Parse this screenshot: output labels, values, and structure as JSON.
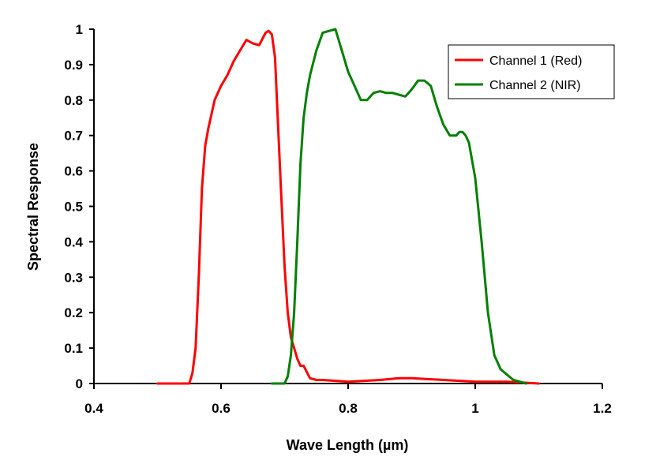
{
  "chart_data": {
    "type": "line",
    "xlabel": "Wave Length (µm)",
    "ylabel": "Spectral Response",
    "xlim": [
      0.4,
      1.2
    ],
    "ylim": [
      0,
      1
    ],
    "x_ticks": [
      "0.4",
      "0.6",
      "0.8",
      "1",
      "1.2"
    ],
    "y_ticks": [
      "0",
      "0.1",
      "0.2",
      "0.3",
      "0.4",
      "0.5",
      "0.6",
      "0.7",
      "0.8",
      "0.9",
      "1"
    ],
    "grid": false,
    "legend_position": "top-right",
    "series": [
      {
        "name": "Channel 1 (Red)",
        "color": "#ff0000",
        "x": [
          0.5,
          0.55,
          0.555,
          0.56,
          0.565,
          0.57,
          0.575,
          0.58,
          0.59,
          0.6,
          0.61,
          0.62,
          0.63,
          0.64,
          0.65,
          0.66,
          0.67,
          0.675,
          0.68,
          0.685,
          0.69,
          0.695,
          0.7,
          0.705,
          0.71,
          0.715,
          0.72,
          0.725,
          0.73,
          0.74,
          0.75,
          0.76,
          0.8,
          0.85,
          0.88,
          0.9,
          0.95,
          1.0,
          1.05,
          1.1
        ],
        "y": [
          0.0,
          0.0,
          0.03,
          0.1,
          0.3,
          0.55,
          0.67,
          0.72,
          0.8,
          0.84,
          0.87,
          0.91,
          0.94,
          0.97,
          0.96,
          0.955,
          0.99,
          0.995,
          0.985,
          0.92,
          0.72,
          0.52,
          0.33,
          0.2,
          0.13,
          0.1,
          0.07,
          0.05,
          0.05,
          0.015,
          0.01,
          0.01,
          0.005,
          0.01,
          0.015,
          0.015,
          0.01,
          0.005,
          0.005,
          0.0
        ]
      },
      {
        "name": "Channel 2 (NIR)",
        "color": "#008000",
        "x": [
          0.68,
          0.7,
          0.705,
          0.71,
          0.715,
          0.72,
          0.725,
          0.73,
          0.735,
          0.74,
          0.75,
          0.76,
          0.77,
          0.78,
          0.79,
          0.8,
          0.81,
          0.82,
          0.83,
          0.84,
          0.85,
          0.86,
          0.87,
          0.88,
          0.89,
          0.9,
          0.91,
          0.92,
          0.93,
          0.94,
          0.95,
          0.96,
          0.97,
          0.975,
          0.98,
          0.985,
          0.99,
          1.0,
          1.01,
          1.02,
          1.03,
          1.04,
          1.06,
          1.08
        ],
        "y": [
          0.0,
          0.0,
          0.02,
          0.08,
          0.2,
          0.4,
          0.62,
          0.75,
          0.82,
          0.87,
          0.94,
          0.99,
          0.995,
          1.0,
          0.94,
          0.88,
          0.84,
          0.8,
          0.8,
          0.82,
          0.825,
          0.82,
          0.82,
          0.815,
          0.81,
          0.83,
          0.855,
          0.855,
          0.84,
          0.78,
          0.73,
          0.7,
          0.7,
          0.71,
          0.71,
          0.7,
          0.68,
          0.58,
          0.4,
          0.2,
          0.08,
          0.04,
          0.01,
          0.0
        ]
      }
    ]
  }
}
